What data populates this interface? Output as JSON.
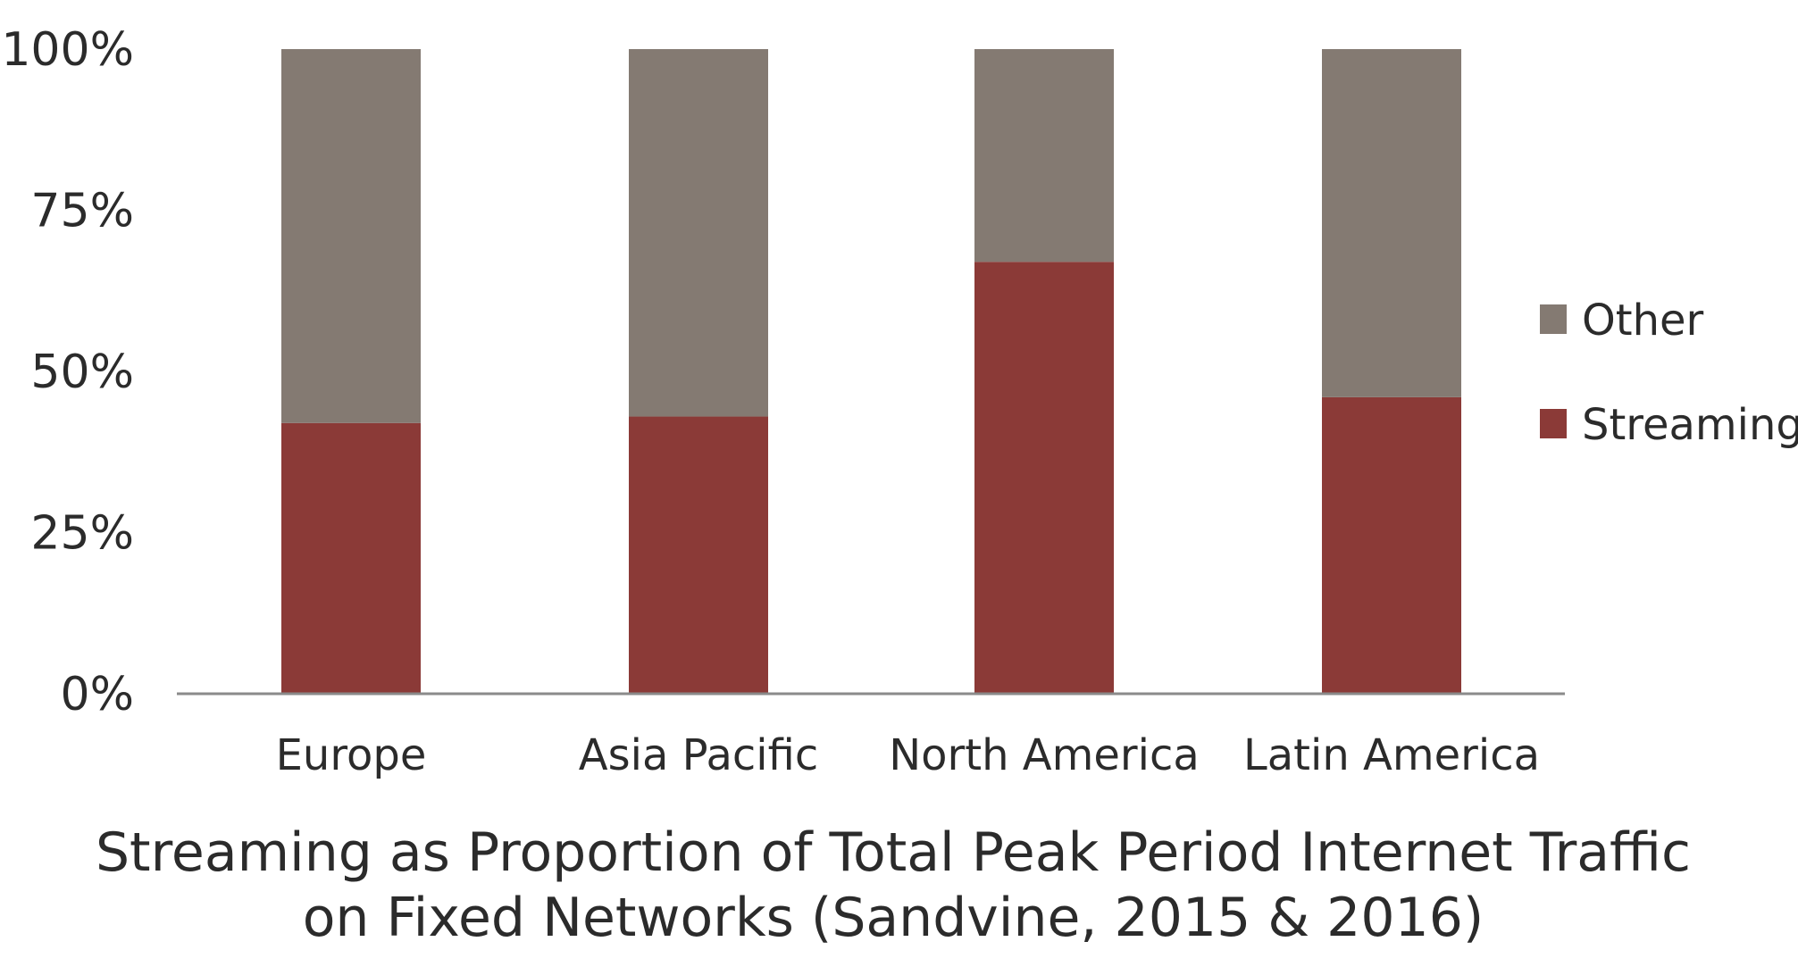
{
  "chart_data": {
    "type": "bar",
    "stacked": true,
    "percent": true,
    "categories": [
      "Europe",
      "Asia Pacific",
      "North America",
      "Latin America"
    ],
    "series": [
      {
        "name": "Streaming",
        "values": [
          42,
          43,
          67,
          46
        ],
        "color": "#8b3a37"
      },
      {
        "name": "Other",
        "values": [
          58,
          57,
          33,
          54
        ],
        "color": "#847a72"
      }
    ],
    "ylim": [
      0,
      100
    ],
    "yticks": [
      "0%",
      "25%",
      "50%",
      "75%",
      "100%"
    ],
    "title": [
      "Streaming as Proportion of Total Peak Period Internet Traffic",
      "on Fixed Networks (Sandvine, 2015 & 2016)"
    ],
    "xlabel": "",
    "ylabel": "",
    "grid": false,
    "legend_position": "right",
    "legend_order": [
      "Other",
      "Streaming"
    ]
  }
}
